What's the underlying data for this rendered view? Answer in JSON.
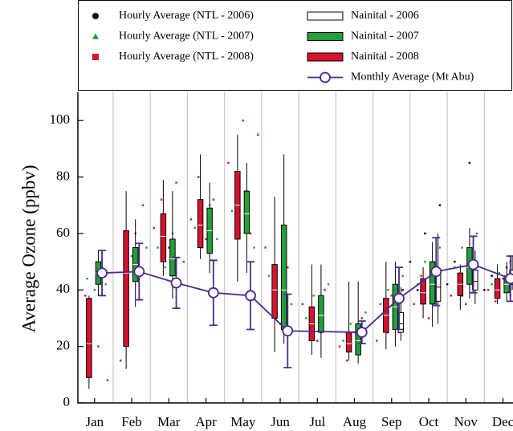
{
  "chart_data": {
    "type": "box",
    "y_label": "Average Ozone (ppbv)",
    "xlim": [
      0.55,
      12.27
    ],
    "ylim": [
      0,
      110
    ],
    "yticks": [
      0,
      20,
      40,
      60,
      80,
      100
    ],
    "xticks": [
      {
        "value": 1,
        "label": "Jan"
      },
      {
        "value": 2,
        "label": "Feb"
      },
      {
        "value": 3,
        "label": "Mar"
      },
      {
        "value": 4,
        "label": "Apr"
      },
      {
        "value": 5,
        "label": "May"
      },
      {
        "value": 6,
        "label": "Jun"
      },
      {
        "value": 7,
        "label": "Jul"
      },
      {
        "value": 8,
        "label": "Aug"
      },
      {
        "value": 9,
        "label": "Sep"
      },
      {
        "value": 10,
        "label": "Oct"
      },
      {
        "value": 11,
        "label": "Nov"
      },
      {
        "value": 12,
        "label": "Dec"
      }
    ],
    "xgrid": [
      1.5,
      2.5,
      3.5,
      4.5,
      5.5,
      6.5,
      7.5,
      8.5,
      9.5,
      10.5,
      11.5
    ],
    "grid_color": "#c8c8c8",
    "scatter": [
      {
        "name": "Hourly Average (NTL - 2006)",
        "color": "#000000",
        "marker": "circle",
        "x": [
          8.9,
          9.1,
          9.3,
          9.5,
          9.7,
          9.9,
          10.1,
          10.3,
          10.5,
          10.7,
          10.9,
          11.1,
          11.3,
          11.5,
          11.7,
          11.9,
          12.1
        ],
        "values": [
          25,
          33,
          40,
          50,
          40,
          60,
          45,
          70,
          42,
          50,
          38,
          85,
          45,
          40,
          45,
          38,
          48
        ]
      },
      {
        "name": "Hourly Average (NTL - 2007)",
        "color": "#22a03a",
        "marker": "triangle",
        "x": [
          0.8,
          1.0,
          1.2,
          1.3,
          1.8,
          2.0,
          2.2,
          2.4,
          2.7,
          2.9,
          3.1,
          3.3,
          3.7,
          3.9,
          4.1,
          4.3,
          4.7,
          4.9,
          5.1,
          5.3,
          5.7,
          5.9,
          6.1,
          6.3,
          6.7,
          6.9,
          7.1,
          7.3,
          7.7,
          7.9,
          8.1,
          8.3,
          8.7,
          8.9,
          9.1,
          9.3,
          9.7,
          9.9,
          10.1,
          10.3,
          10.7,
          10.9,
          11.1,
          11.3,
          11.7,
          11.9,
          12.1,
          12.2
        ],
        "values": [
          44,
          40,
          48,
          42,
          48,
          52,
          45,
          55,
          55,
          48,
          60,
          42,
          62,
          55,
          70,
          58,
          68,
          60,
          75,
          55,
          45,
          30,
          55,
          35,
          30,
          38,
          25,
          42,
          22,
          28,
          18,
          32,
          35,
          40,
          30,
          45,
          42,
          50,
          38,
          55,
          48,
          55,
          42,
          60,
          42,
          46,
          40,
          50
        ]
      },
      {
        "name": "Hourly Average (NTL - 2008)",
        "color": "#d9102e",
        "marker": "square",
        "x": [
          0.75,
          1.1,
          1.35,
          1.7,
          1.9,
          2.1,
          2.3,
          2.6,
          2.8,
          3.0,
          3.2,
          3.4,
          3.6,
          3.8,
          4.0,
          4.2,
          4.6,
          4.8,
          5.0,
          5.2,
          5.4,
          5.6,
          5.8,
          6.0,
          6.2,
          6.6,
          6.8,
          7.0,
          7.2,
          7.6,
          7.8,
          8.0,
          8.2,
          8.6,
          8.8,
          9.0,
          9.2,
          9.6,
          9.8,
          10.0,
          10.2,
          10.6,
          10.8,
          11.0,
          11.2,
          11.6,
          11.8,
          12.0,
          12.2
        ],
        "values": [
          38,
          20,
          8,
          15,
          45,
          60,
          70,
          62,
          72,
          55,
          78,
          50,
          65,
          80,
          58,
          72,
          85,
          70,
          100,
          60,
          95,
          55,
          40,
          28,
          48,
          35,
          28,
          22,
          40,
          20,
          15,
          25,
          30,
          22,
          30,
          38,
          25,
          35,
          45,
          30,
          40,
          38,
          45,
          35,
          50,
          40,
          36,
          44,
          38
        ]
      }
    ],
    "boxes": [
      {
        "name": "Nainital - 2006",
        "color": "#ffffff",
        "whisker_low": [
          null,
          null,
          null,
          null,
          null,
          null,
          null,
          null,
          22,
          28,
          35,
          40
        ],
        "q1": [
          null,
          null,
          null,
          null,
          null,
          null,
          null,
          null,
          25,
          36,
          40,
          42
        ],
        "median": [
          null,
          null,
          null,
          null,
          null,
          null,
          null,
          null,
          28,
          41,
          43,
          44
        ],
        "q3": [
          null,
          null,
          null,
          null,
          null,
          null,
          null,
          null,
          32,
          47,
          47,
          47
        ],
        "whisker_high": [
          null,
          null,
          null,
          null,
          null,
          null,
          null,
          null,
          41,
          60,
          54,
          52
        ]
      },
      {
        "name": "Nainital - 2007",
        "color": "#22a03a",
        "whisker_low": [
          38,
          34,
          37,
          46,
          46,
          21,
          16,
          14,
          20,
          27,
          37,
          36
        ],
        "q1": [
          42,
          43,
          45,
          53,
          60,
          26,
          25,
          17,
          26,
          35,
          42,
          39
        ],
        "median": [
          46,
          49,
          51,
          61,
          67,
          40,
          31,
          22,
          34,
          42,
          48,
          42
        ],
        "q3": [
          50,
          55,
          58,
          69,
          75,
          63,
          38,
          28,
          42,
          50,
          55,
          45
        ],
        "whisker_high": [
          54,
          65,
          75,
          78,
          85,
          88,
          49,
          43,
          50,
          57,
          62,
          50
        ]
      },
      {
        "name": "Nainital - 2008",
        "color": "#d9102e",
        "whisker_low": [
          5,
          12,
          45,
          51,
          43,
          18,
          17,
          15,
          19,
          30,
          33,
          35
        ],
        "q1": [
          9,
          20,
          50,
          55,
          58,
          30,
          22,
          18,
          25,
          35,
          38,
          37
        ],
        "median": [
          21,
          46,
          59,
          63,
          70,
          40,
          28,
          21,
          31,
          39,
          42,
          40
        ],
        "q3": [
          37,
          61,
          67,
          72,
          82,
          49,
          34,
          25,
          37,
          44,
          46,
          44
        ],
        "whisker_high": [
          38,
          75,
          79,
          88,
          95,
          73,
          49,
          43,
          50,
          48,
          49,
          49
        ]
      }
    ],
    "line": {
      "name": "Monthly Average (Mt Abu)",
      "color": "#4b2a8c",
      "x": [
        1.2,
        2.2,
        3.2,
        4.2,
        5.2,
        6.2,
        8.2,
        9.2,
        10.2,
        11.2,
        12.2
      ],
      "values": [
        46,
        46.5,
        42.5,
        39,
        38,
        25.5,
        25,
        37,
        46.5,
        49,
        44
      ],
      "errors": [
        8,
        10,
        9,
        11.5,
        12,
        13,
        4,
        11,
        12,
        10,
        8
      ]
    }
  }
}
